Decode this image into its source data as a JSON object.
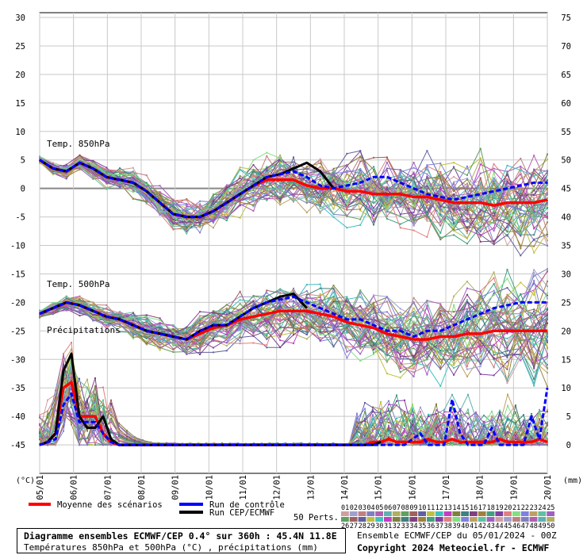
{
  "chart_data": {
    "type": "line",
    "title": "Diagramme ensembles ECMWF/CEP 0.4° sur 360h : 45.4N 11.8E",
    "subtitle": "Températures 850hPa et 500hPa (°C) , précipitations (mm)",
    "run_info": "Ensemble ECMWF/CEP du 05/01/2024 - 00Z",
    "copyright": "Copyright 2024 Meteociel.fr - ECMWF",
    "x_ticks": [
      "05/01",
      "06/01",
      "07/01",
      "08/01",
      "09/01",
      "10/01",
      "11/01",
      "12/01",
      "13/01",
      "14/01",
      "15/01",
      "16/01",
      "17/01",
      "18/01",
      "19/01",
      "20/01"
    ],
    "x_unit_left": "(°C)",
    "x_unit_right": "(mm)",
    "left_axis": {
      "ticks": [
        30,
        25,
        20,
        15,
        10,
        5,
        0,
        -5,
        -10,
        -15,
        -20,
        -25,
        -30,
        -35,
        -40,
        -45
      ],
      "ylim": [
        -50,
        30
      ]
    },
    "right_axis": {
      "ticks": [
        75,
        70,
        65,
        60,
        55,
        50,
        45,
        40,
        35,
        30,
        25,
        20,
        15,
        10,
        5,
        0
      ]
    },
    "panel_labels": [
      "Temp. 850hPa",
      "Temp. 500hPa",
      "Précipitations"
    ],
    "legend": {
      "mean": "Moyenne des scénarios",
      "control": "Run de contrôle",
      "oper": "Run CEP/ECMWF",
      "perts": "50 Perts.",
      "perts_top": [
        "01",
        "02",
        "03",
        "04",
        "05",
        "06",
        "07",
        "08",
        "09",
        "10",
        "11",
        "12",
        "13",
        "14",
        "15",
        "16",
        "17",
        "18",
        "19",
        "20",
        "21",
        "22",
        "23",
        "24",
        "25"
      ],
      "perts_bottom": [
        "26",
        "27",
        "28",
        "29",
        "30",
        "31",
        "32",
        "33",
        "34",
        "35",
        "36",
        "37",
        "38",
        "39",
        "40",
        "41",
        "42",
        "43",
        "44",
        "45",
        "46",
        "47",
        "48",
        "49",
        "50"
      ]
    },
    "series": [
      {
        "name": "Moyenne des scénarios",
        "panel": "850",
        "color": "#ff0000",
        "values": [
          5,
          3.5,
          3,
          4.5,
          3.5,
          2,
          1.5,
          1,
          -0.5,
          -2.5,
          -4.5,
          -5,
          -5,
          -4,
          -2.5,
          -1,
          0.5,
          1.5,
          1.5,
          1.5,
          0.5,
          0,
          0,
          -0.5,
          -0.5,
          -1,
          -1,
          -1,
          -1.5,
          -1.5,
          -2,
          -2.5,
          -2.5,
          -2.5,
          -3,
          -2.5,
          -2.5,
          -2.5,
          -2
        ]
      },
      {
        "name": "Run CEP/ECMWF",
        "panel": "850",
        "color": "#000000",
        "values": [
          5,
          3.5,
          3,
          4.5,
          3.5,
          2,
          1.5,
          1,
          -0.5,
          -2.5,
          -4.5,
          -5,
          -5,
          -4,
          -2.5,
          -1,
          0.5,
          2,
          2.5,
          3.5,
          4.5,
          3,
          0
        ]
      },
      {
        "name": "Run de contrôle",
        "panel": "850",
        "color": "#0000ff",
        "values": [
          5,
          3.5,
          3,
          4.5,
          3.5,
          2,
          1.5,
          1,
          -0.5,
          -2.5,
          -4.5,
          -5,
          -5,
          -4,
          -2.5,
          -1,
          0.5,
          2,
          2.5,
          3,
          2,
          0.5,
          0,
          0.5,
          1,
          2,
          2,
          1,
          0,
          -1,
          -1.5,
          -2,
          -1.5,
          -1,
          -0.5,
          0,
          0.5,
          1,
          1
        ]
      },
      {
        "name": "Moyenne des scénarios",
        "panel": "500",
        "color": "#ff0000",
        "values": [
          -22,
          -21,
          -20,
          -20.5,
          -21.5,
          -22.5,
          -23,
          -24,
          -25,
          -25.5,
          -26,
          -26.5,
          -25.5,
          -24.5,
          -24,
          -23,
          -22.5,
          -22,
          -21.5,
          -21.5,
          -21.5,
          -22,
          -22.5,
          -23.5,
          -24,
          -24.5,
          -25.5,
          -26,
          -26.5,
          -26.5,
          -26,
          -26,
          -25.5,
          -25.5,
          -25,
          -25,
          -25,
          -25,
          -25
        ]
      },
      {
        "name": "Run CEP/ECMWF",
        "panel": "500",
        "color": "#000000",
        "values": [
          -22,
          -21,
          -20,
          -20.5,
          -21.5,
          -22.5,
          -23,
          -24,
          -25,
          -25.5,
          -26,
          -26.5,
          -25,
          -24,
          -24,
          -22.5,
          -21,
          -20,
          -19,
          -18.5,
          -21
        ]
      },
      {
        "name": "Run de contrôle",
        "panel": "500",
        "color": "#0000ff",
        "values": [
          -22,
          -21,
          -20,
          -20.5,
          -21.5,
          -22.5,
          -23,
          -24,
          -25,
          -25.5,
          -26,
          -26.5,
          -25,
          -24,
          -24,
          -22.5,
          -21,
          -20,
          -19.5,
          -19,
          -20,
          -21,
          -22,
          -23,
          -23,
          -24,
          -25,
          -25,
          -26,
          -25,
          -25,
          -24,
          -23,
          -22,
          -21,
          -20.5,
          -20,
          -20,
          -20
        ]
      },
      {
        "name": "Moyenne des scénarios",
        "panel": "precip",
        "color": "#ff0000",
        "values": [
          0,
          0.5,
          2,
          10,
          11,
          5,
          5,
          5,
          2,
          0.5,
          0,
          0,
          0,
          0,
          0,
          0,
          0,
          0,
          0,
          0,
          0,
          0,
          0,
          0,
          0,
          0,
          0,
          0,
          0,
          0,
          0,
          0,
          0,
          0,
          0,
          0,
          0,
          0,
          0,
          0,
          0,
          0,
          0.5,
          0.5,
          1,
          0.5,
          0.5,
          0.5,
          0.5,
          1,
          0.5,
          0.5,
          1,
          0.5,
          0.5,
          0.5,
          0.5,
          0.5,
          1,
          0.5,
          0.5,
          0.5,
          0.5,
          1,
          0.5
        ]
      },
      {
        "name": "Run CEP/ECMWF",
        "panel": "precip",
        "color": "#000000",
        "values": [
          0,
          0.5,
          2,
          13,
          16,
          5,
          3,
          3,
          5,
          1,
          0,
          0,
          0,
          0,
          0,
          0,
          0,
          0,
          0,
          0,
          0,
          0,
          0,
          0,
          0,
          0,
          0,
          0,
          0,
          0,
          0,
          0,
          0,
          0,
          0,
          0,
          0,
          0,
          0,
          0,
          0,
          0,
          0,
          0.5
        ]
      },
      {
        "name": "Run de contrôle",
        "panel": "precip",
        "color": "#0000ff",
        "values": [
          0,
          0.5,
          1,
          7,
          9,
          4,
          4,
          4,
          2,
          0.5,
          0,
          0,
          0,
          0,
          0,
          0,
          0,
          0,
          0,
          0,
          0,
          0,
          0,
          0,
          0,
          0,
          0,
          0,
          0,
          0,
          0,
          0,
          0,
          0,
          0,
          0,
          0,
          0,
          0,
          0,
          0,
          0,
          0,
          0,
          0,
          0,
          0,
          1,
          2,
          0,
          0,
          0,
          8,
          2,
          0,
          0,
          0,
          3,
          0,
          0,
          0,
          0,
          5,
          1,
          10
        ]
      }
    ],
    "grid": true
  }
}
